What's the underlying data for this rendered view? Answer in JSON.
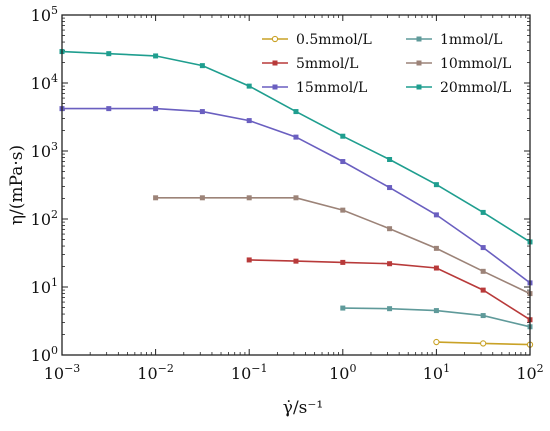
{
  "chart_data": {
    "type": "line",
    "xlabel": "γ̇/s⁻¹",
    "ylabel": "η/(mPa·s)",
    "xscale": "log",
    "yscale": "log",
    "xlim": [
      0.001,
      100
    ],
    "ylim": [
      1,
      100000
    ],
    "x_ticks": [
      {
        "value": 0.001,
        "base": "10",
        "exp": "−3"
      },
      {
        "value": 0.01,
        "base": "10",
        "exp": "−2"
      },
      {
        "value": 0.1,
        "base": "10",
        "exp": "−1"
      },
      {
        "value": 1,
        "base": "10",
        "exp": "0"
      },
      {
        "value": 10,
        "base": "10",
        "exp": "1"
      },
      {
        "value": 100,
        "base": "10",
        "exp": "2"
      }
    ],
    "y_ticks": [
      {
        "value": 1,
        "base": "10",
        "exp": "0"
      },
      {
        "value": 10,
        "base": "10",
        "exp": "1"
      },
      {
        "value": 100,
        "base": "10",
        "exp": "2"
      },
      {
        "value": 1000,
        "base": "10",
        "exp": "3"
      },
      {
        "value": 10000,
        "base": "10",
        "exp": "4"
      },
      {
        "value": 100000,
        "base": "10",
        "exp": "5"
      }
    ],
    "grid": false,
    "legend_position": "top-right",
    "series": [
      {
        "name": "0.5mmol/L",
        "color": "#c9a227",
        "marker": "circle-open",
        "x": [
          10,
          31.6,
          100
        ],
        "y": [
          1.55,
          1.48,
          1.42
        ]
      },
      {
        "name": "1mmol/L",
        "color": "#5f9a9a",
        "marker": "square",
        "x": [
          1,
          3.16,
          10,
          31.6,
          100
        ],
        "y": [
          4.9,
          4.8,
          4.5,
          3.8,
          2.6
        ]
      },
      {
        "name": "5mmol/L",
        "color": "#b83a3a",
        "marker": "square",
        "x": [
          0.1,
          0.316,
          1,
          3.16,
          10,
          31.6,
          100
        ],
        "y": [
          25,
          24,
          23,
          22,
          19,
          9,
          3.3
        ]
      },
      {
        "name": "10mmol/L",
        "color": "#9c8378",
        "marker": "square",
        "x": [
          0.01,
          0.0316,
          0.1,
          0.316,
          1,
          3.16,
          10,
          31.6,
          100
        ],
        "y": [
          205,
          205,
          205,
          205,
          135,
          72,
          37,
          17,
          8
        ]
      },
      {
        "name": "15mmol/L",
        "color": "#6a5fc0",
        "marker": "square",
        "x": [
          0.001,
          0.00316,
          0.01,
          0.0316,
          0.1,
          0.316,
          1,
          3.16,
          10,
          31.6,
          100
        ],
        "y": [
          4200,
          4200,
          4200,
          3800,
          2800,
          1600,
          700,
          290,
          115,
          38,
          11.5
        ]
      },
      {
        "name": "20mmol/L",
        "color": "#1f9e8f",
        "marker": "square",
        "x": [
          0.001,
          0.00316,
          0.01,
          0.0316,
          0.1,
          0.316,
          1,
          3.16,
          10,
          31.6,
          100
        ],
        "y": [
          29000,
          27000,
          25000,
          18000,
          9000,
          3800,
          1650,
          750,
          320,
          125,
          46
        ]
      }
    ]
  }
}
